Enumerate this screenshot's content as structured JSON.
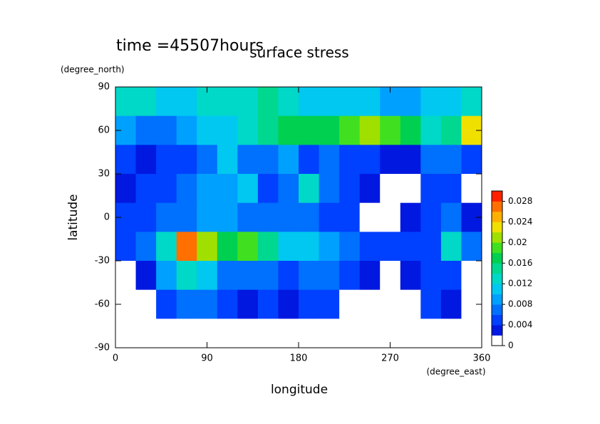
{
  "chart_data": {
    "type": "heatmap",
    "title": "surface stress",
    "subtitle": "time =45507hours",
    "x_label": "longitude",
    "x_unit": "(degree_east)",
    "y_label": "latitude",
    "y_unit": "(degree_north)",
    "xlim": [
      0,
      360
    ],
    "ylim": [
      -90,
      90
    ],
    "xticks": [
      0,
      90,
      180,
      270,
      360
    ],
    "yticks": [
      90,
      60,
      30,
      0,
      -30,
      -60,
      -90
    ],
    "x": [
      10,
      30,
      50,
      70,
      90,
      110,
      130,
      150,
      170,
      190,
      210,
      230,
      250,
      270,
      290,
      310,
      330,
      350
    ],
    "y": [
      80,
      60,
      40,
      20,
      0,
      -20,
      -40,
      -60,
      -80
    ],
    "z": [
      [
        0.012,
        0.012,
        0.01,
        0.01,
        0.012,
        0.012,
        0.012,
        0.014,
        0.012,
        0.01,
        0.01,
        0.01,
        0.01,
        0.008,
        0.008,
        0.01,
        0.01,
        0.012
      ],
      [
        0.008,
        0.006,
        0.006,
        0.008,
        0.01,
        0.01,
        0.012,
        0.014,
        0.016,
        0.016,
        0.016,
        0.018,
        0.02,
        0.018,
        0.016,
        0.012,
        0.014,
        0.022
      ],
      [
        0.004,
        0.002,
        0.004,
        0.004,
        0.006,
        0.01,
        0.006,
        0.006,
        0.008,
        0.004,
        0.006,
        0.004,
        0.004,
        0.002,
        0.002,
        0.006,
        0.006,
        0.004
      ],
      [
        0.002,
        0.004,
        0.004,
        0.006,
        0.008,
        0.008,
        0.01,
        0.004,
        0.006,
        0.012,
        0.006,
        0.004,
        0.002,
        0,
        0,
        0.004,
        0.004,
        0
      ],
      [
        0.004,
        0.004,
        0.006,
        0.006,
        0.008,
        0.008,
        0.006,
        0.006,
        0.006,
        0.006,
        0.004,
        0.004,
        0,
        0,
        0.002,
        0.004,
        0.006,
        0.002
      ],
      [
        0.004,
        0.006,
        0.012,
        0.026,
        0.02,
        0.016,
        0.018,
        0.014,
        0.01,
        0.01,
        0.008,
        0.006,
        0.004,
        0.004,
        0.004,
        0.004,
        0.012,
        0.006
      ],
      [
        0,
        0.002,
        0.008,
        0.012,
        0.01,
        0.006,
        0.006,
        0.006,
        0.004,
        0.006,
        0.006,
        0.004,
        0.002,
        0,
        0.002,
        0.004,
        0.004,
        0
      ],
      [
        0,
        0,
        0.004,
        0.006,
        0.006,
        0.004,
        0.002,
        0.004,
        0.002,
        0.004,
        0.004,
        0,
        0,
        0,
        0,
        0.004,
        0.002,
        0
      ],
      [
        0,
        0,
        0,
        0,
        0,
        0,
        0,
        0,
        0,
        0,
        0,
        0,
        0,
        0,
        0,
        0,
        0,
        0
      ]
    ],
    "colorbar": {
      "lim": [
        0,
        0.03
      ],
      "ticks": [
        0,
        0.004,
        0.008,
        0.012,
        0.016,
        0.02,
        0.024,
        0.028
      ],
      "levels": [
        0,
        0.002,
        0.004,
        0.006,
        0.008,
        0.01,
        0.012,
        0.014,
        0.016,
        0.018,
        0.02,
        0.022,
        0.024,
        0.026,
        0.028,
        0.03
      ],
      "colors": [
        "#ffffff",
        "#0018e0",
        "#0040ff",
        "#0070ff",
        "#00a0ff",
        "#00c8f0",
        "#00d8c8",
        "#00d890",
        "#00d050",
        "#40e020",
        "#a0e000",
        "#f0e000",
        "#ffb000",
        "#ff7000",
        "#ff2000"
      ]
    }
  }
}
